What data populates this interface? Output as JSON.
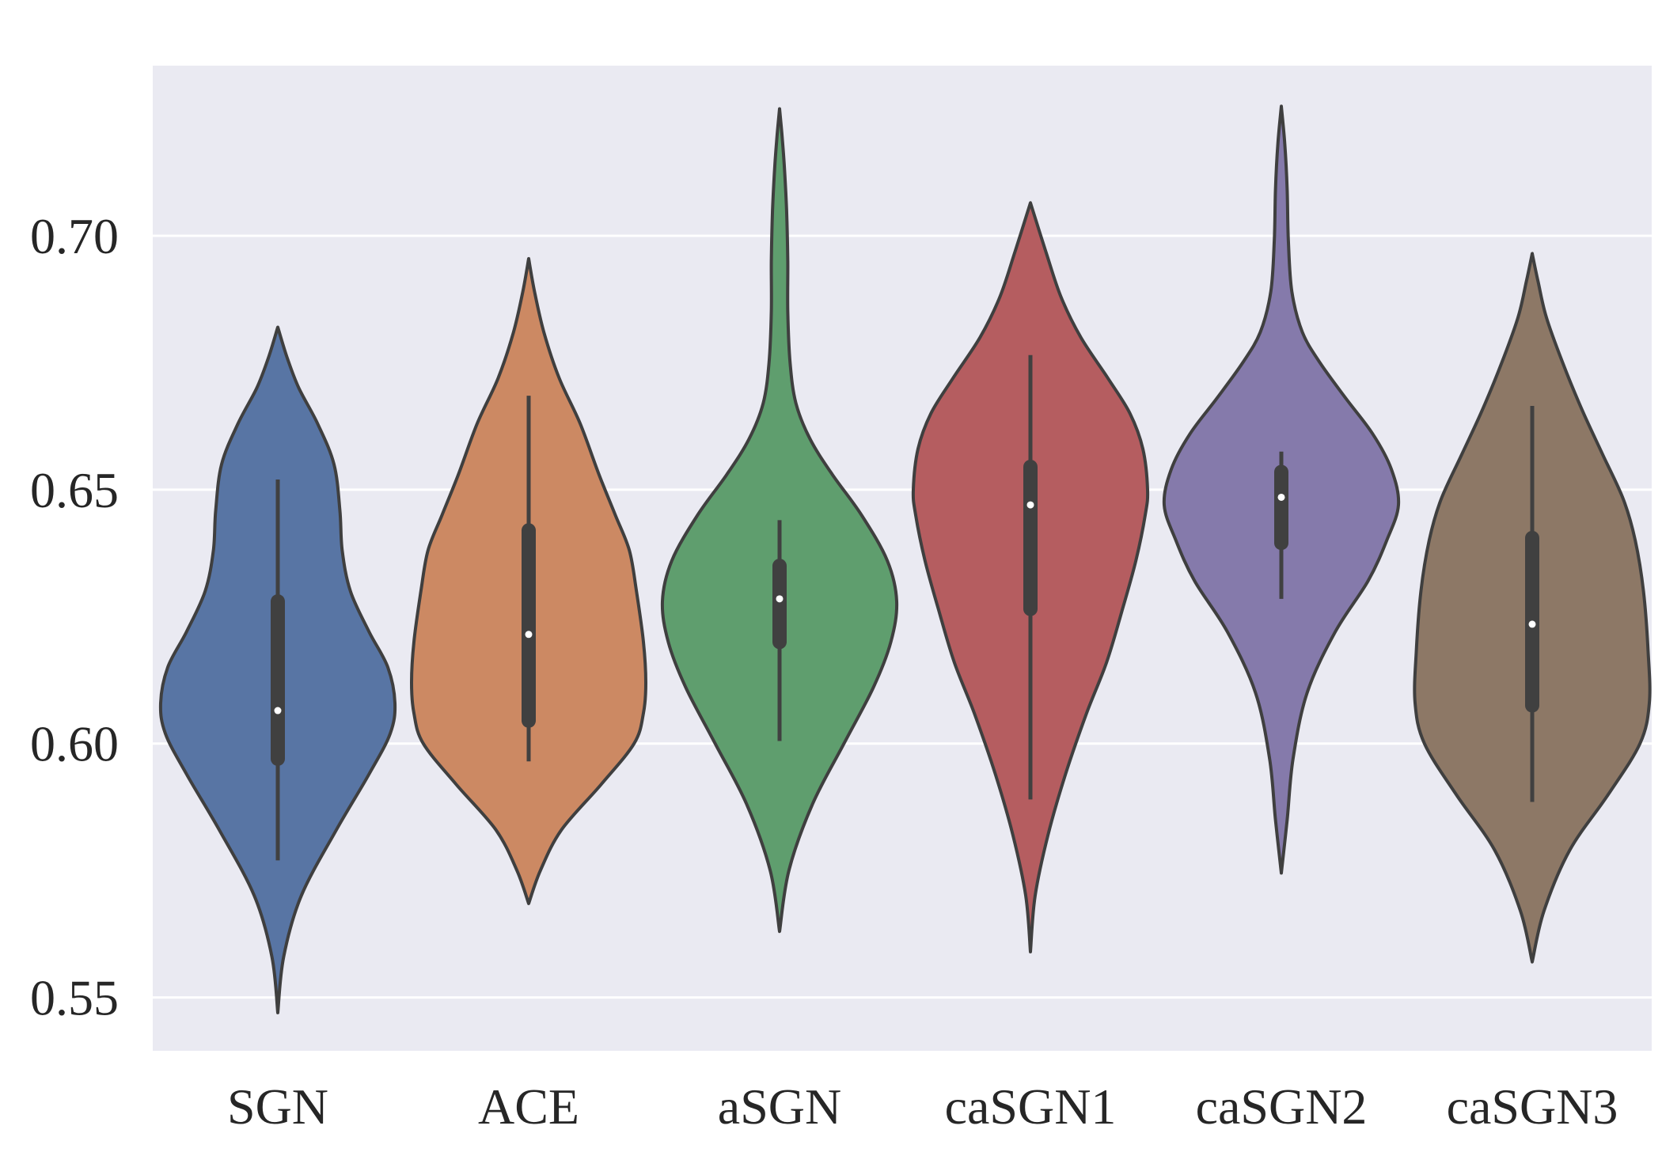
{
  "chart_data": {
    "type": "violin",
    "title": "",
    "xlabel": "",
    "ylabel": "",
    "ylim": [
      0.5395,
      0.7335
    ],
    "yticks": [
      0.55,
      0.6,
      0.65,
      0.7
    ],
    "ytick_labels": [
      "0.55",
      "0.60",
      "0.65",
      "0.70"
    ],
    "grid": true,
    "background": "#eaeaf2",
    "categories": [
      "SGN",
      "ACE",
      "aSGN",
      "caSGN1",
      "caSGN2",
      "caSGN3"
    ],
    "series": [
      {
        "name": "SGN",
        "color": "#5875a4",
        "min": 0.577,
        "q1": 0.597,
        "median": 0.6065,
        "q3": 0.628,
        "max": 0.652,
        "kde_min": 0.547,
        "kde_max": 0.682,
        "density": [
          [
            0.547,
            0
          ],
          [
            0.558,
            0.05
          ],
          [
            0.57,
            0.2
          ],
          [
            0.583,
            0.5
          ],
          [
            0.594,
            0.78
          ],
          [
            0.602,
            0.96
          ],
          [
            0.608,
            1.0
          ],
          [
            0.615,
            0.94
          ],
          [
            0.622,
            0.78
          ],
          [
            0.63,
            0.62
          ],
          [
            0.638,
            0.55
          ],
          [
            0.646,
            0.53
          ],
          [
            0.655,
            0.48
          ],
          [
            0.663,
            0.34
          ],
          [
            0.67,
            0.18
          ],
          [
            0.676,
            0.08
          ],
          [
            0.682,
            0
          ]
        ]
      },
      {
        "name": "ACE",
        "color": "#cc8963",
        "min": 0.5965,
        "q1": 0.6045,
        "median": 0.6215,
        "q3": 0.642,
        "max": 0.6685,
        "kde_min": 0.5685,
        "kde_max": 0.6955,
        "density": [
          [
            0.5685,
            0
          ],
          [
            0.575,
            0.1
          ],
          [
            0.583,
            0.28
          ],
          [
            0.592,
            0.62
          ],
          [
            0.6,
            0.9
          ],
          [
            0.606,
            0.98
          ],
          [
            0.612,
            1.0
          ],
          [
            0.62,
            0.98
          ],
          [
            0.63,
            0.92
          ],
          [
            0.638,
            0.86
          ],
          [
            0.645,
            0.74
          ],
          [
            0.653,
            0.6
          ],
          [
            0.663,
            0.44
          ],
          [
            0.672,
            0.26
          ],
          [
            0.681,
            0.13
          ],
          [
            0.689,
            0.05
          ],
          [
            0.6955,
            0
          ]
        ]
      },
      {
        "name": "aSGN",
        "color": "#5f9e6e",
        "min": 0.6005,
        "q1": 0.62,
        "median": 0.6285,
        "q3": 0.635,
        "max": 0.644,
        "kde_min": 0.563,
        "kde_max": 0.725,
        "density": [
          [
            0.563,
            0
          ],
          [
            0.575,
            0.08
          ],
          [
            0.588,
            0.28
          ],
          [
            0.6,
            0.55
          ],
          [
            0.611,
            0.8
          ],
          [
            0.62,
            0.95
          ],
          [
            0.628,
            1.0
          ],
          [
            0.636,
            0.92
          ],
          [
            0.645,
            0.7
          ],
          [
            0.653,
            0.45
          ],
          [
            0.66,
            0.26
          ],
          [
            0.667,
            0.14
          ],
          [
            0.675,
            0.09
          ],
          [
            0.685,
            0.07
          ],
          [
            0.695,
            0.07
          ],
          [
            0.705,
            0.06
          ],
          [
            0.714,
            0.04
          ],
          [
            0.72,
            0.02
          ],
          [
            0.725,
            0
          ]
        ]
      },
      {
        "name": "caSGN1",
        "color": "#b55d60",
        "min": 0.589,
        "q1": 0.6265,
        "median": 0.647,
        "q3": 0.6545,
        "max": 0.6765,
        "kde_min": 0.559,
        "kde_max": 0.7065,
        "density": [
          [
            0.559,
            0
          ],
          [
            0.57,
            0.04
          ],
          [
            0.582,
            0.15
          ],
          [
            0.594,
            0.3
          ],
          [
            0.606,
            0.48
          ],
          [
            0.616,
            0.65
          ],
          [
            0.626,
            0.78
          ],
          [
            0.636,
            0.9
          ],
          [
            0.645,
            0.98
          ],
          [
            0.65,
            1.0
          ],
          [
            0.658,
            0.96
          ],
          [
            0.665,
            0.85
          ],
          [
            0.672,
            0.66
          ],
          [
            0.68,
            0.43
          ],
          [
            0.688,
            0.26
          ],
          [
            0.697,
            0.13
          ],
          [
            0.7065,
            0
          ]
        ]
      },
      {
        "name": "caSGN2",
        "color": "#857aab",
        "min": 0.6285,
        "q1": 0.6395,
        "median": 0.6485,
        "q3": 0.6535,
        "max": 0.6575,
        "kde_min": 0.5745,
        "kde_max": 0.7255,
        "density": [
          [
            0.5745,
            0
          ],
          [
            0.585,
            0.05
          ],
          [
            0.597,
            0.1
          ],
          [
            0.61,
            0.22
          ],
          [
            0.622,
            0.46
          ],
          [
            0.632,
            0.74
          ],
          [
            0.64,
            0.9
          ],
          [
            0.647,
            1.0
          ],
          [
            0.654,
            0.94
          ],
          [
            0.661,
            0.78
          ],
          [
            0.668,
            0.55
          ],
          [
            0.675,
            0.33
          ],
          [
            0.681,
            0.18
          ],
          [
            0.689,
            0.09
          ],
          [
            0.699,
            0.06
          ],
          [
            0.709,
            0.05
          ],
          [
            0.718,
            0.03
          ],
          [
            0.7255,
            0
          ]
        ]
      },
      {
        "name": "caSGN3",
        "color": "#8d7866",
        "min": 0.5885,
        "q1": 0.6075,
        "median": 0.6235,
        "q3": 0.6405,
        "max": 0.6665,
        "kde_min": 0.557,
        "kde_max": 0.6965,
        "density": [
          [
            0.557,
            0
          ],
          [
            0.567,
            0.1
          ],
          [
            0.579,
            0.32
          ],
          [
            0.59,
            0.65
          ],
          [
            0.6,
            0.92
          ],
          [
            0.608,
            1.0
          ],
          [
            0.618,
            0.99
          ],
          [
            0.63,
            0.95
          ],
          [
            0.64,
            0.88
          ],
          [
            0.648,
            0.78
          ],
          [
            0.657,
            0.6
          ],
          [
            0.666,
            0.42
          ],
          [
            0.675,
            0.26
          ],
          [
            0.684,
            0.12
          ],
          [
            0.691,
            0.05
          ],
          [
            0.6965,
            0
          ]
        ]
      }
    ]
  }
}
